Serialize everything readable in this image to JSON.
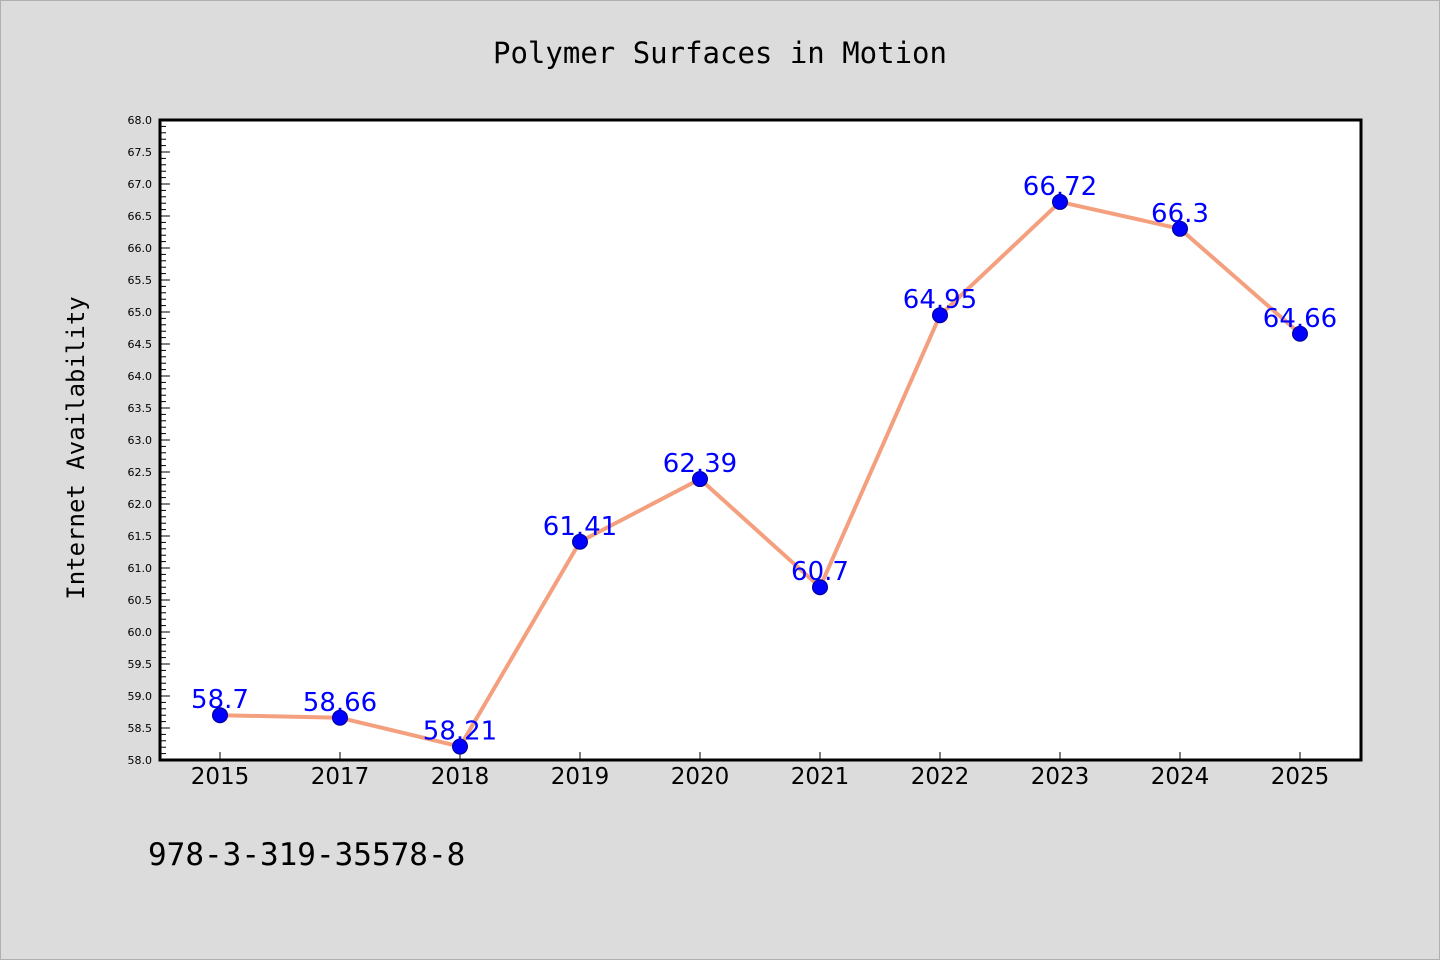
{
  "colors": {
    "background": "#dcdcdc",
    "plot_background": "#ffffff",
    "line": "#f4a07f",
    "marker_fill": "#0000ff",
    "marker_edge": "#00008b",
    "data_label": "#0000ff"
  },
  "footer": {
    "isbn": "978-3-319-35578-8"
  },
  "chart_data": {
    "type": "line",
    "title": "Polymer Surfaces in Motion",
    "xlabel": "",
    "ylabel": "Internet Availability",
    "categories": [
      "2015",
      "2017",
      "2018",
      "2019",
      "2020",
      "2021",
      "2022",
      "2023",
      "2024",
      "2025"
    ],
    "series": [
      {
        "values": [
          58.7,
          58.66,
          58.21,
          61.41,
          62.39,
          60.7,
          64.95,
          66.72,
          66.3,
          64.66
        ],
        "labels": [
          "58.7",
          "58.66",
          "58.21",
          "61.41",
          "62.39",
          "60.7",
          "64.95",
          "66.72",
          "66.3",
          "64.66"
        ]
      }
    ],
    "ylim": [
      58.0,
      68.0
    ],
    "yticks": [
      "58.0",
      "58.5",
      "59.0",
      "59.5",
      "60.0",
      "60.5",
      "61.0",
      "61.5",
      "62.0",
      "62.5",
      "63.0",
      "63.5",
      "64.0",
      "64.5",
      "65.0",
      "65.5",
      "66.0",
      "66.5",
      "67.0",
      "67.5",
      "68.0"
    ],
    "grid": false,
    "legend": "none"
  }
}
